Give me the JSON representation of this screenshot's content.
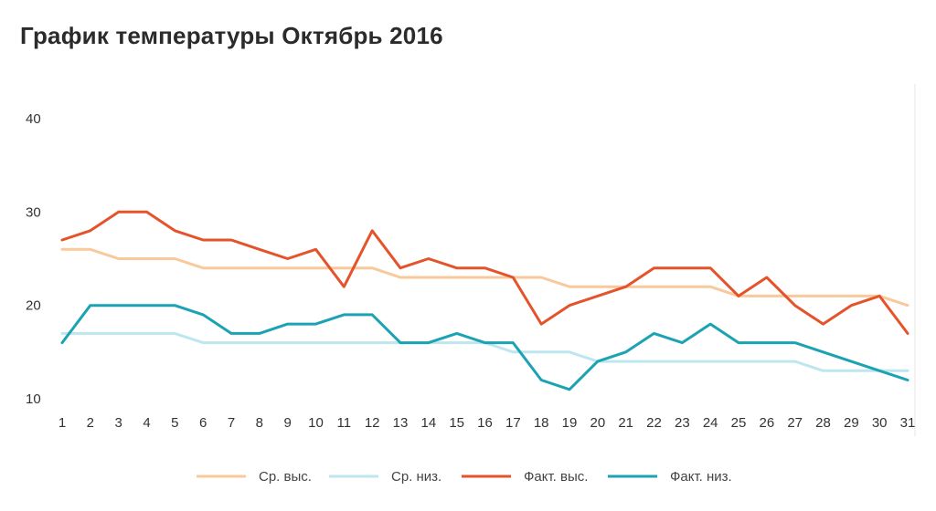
{
  "chart_data": {
    "type": "line",
    "title": "График температуры Октябрь 2016",
    "xlabel": "",
    "ylabel": "",
    "x": [
      1,
      2,
      3,
      4,
      5,
      6,
      7,
      8,
      9,
      10,
      11,
      12,
      13,
      14,
      15,
      16,
      17,
      18,
      19,
      20,
      21,
      22,
      23,
      24,
      25,
      26,
      27,
      28,
      29,
      30,
      31
    ],
    "yticks": [
      10,
      20,
      30,
      40
    ],
    "ylim": [
      10,
      40
    ],
    "grid": false,
    "legend_position": "bottom",
    "series": [
      {
        "name": "Ср. выс.",
        "color": "#f9c89b",
        "values": [
          26,
          26,
          25,
          25,
          25,
          24,
          24,
          24,
          24,
          24,
          24,
          24,
          23,
          23,
          23,
          23,
          23,
          23,
          22,
          22,
          22,
          22,
          22,
          22,
          21,
          21,
          21,
          21,
          21,
          21,
          20
        ]
      },
      {
        "name": "Ср. низ.",
        "color": "#bde6ef",
        "values": [
          17,
          17,
          17,
          17,
          17,
          16,
          16,
          16,
          16,
          16,
          16,
          16,
          16,
          16,
          16,
          16,
          15,
          15,
          15,
          14,
          14,
          14,
          14,
          14,
          14,
          14,
          14,
          13,
          13,
          13,
          13
        ]
      },
      {
        "name": "Факт. выс.",
        "color": "#e4532a",
        "values": [
          27,
          28,
          30,
          30,
          28,
          27,
          27,
          26,
          25,
          26,
          22,
          28,
          24,
          25,
          24,
          24,
          23,
          18,
          20,
          21,
          22,
          24,
          24,
          24,
          21,
          23,
          20,
          18,
          20,
          21,
          17
        ]
      },
      {
        "name": "Факт. низ.",
        "color": "#1ba2b3",
        "values": [
          16,
          20,
          20,
          20,
          20,
          19,
          17,
          17,
          18,
          18,
          19,
          19,
          16,
          16,
          17,
          16,
          16,
          12,
          11,
          14,
          15,
          17,
          16,
          18,
          16,
          16,
          16,
          15,
          14,
          13,
          12
        ]
      }
    ]
  }
}
